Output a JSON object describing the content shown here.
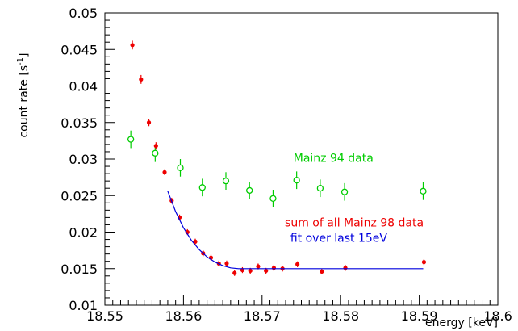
{
  "chart_data": {
    "type": "scatter",
    "xlabel": "energy  [keV]",
    "ylabel": "count rate [s-1]",
    "ylabel_main": "count rate [s",
    "ylabel_sup": "-1",
    "ylabel_tail": "]",
    "xlim": [
      18.55,
      18.6
    ],
    "ylim": [
      0.01,
      0.05
    ],
    "x_ticks": [
      18.55,
      18.56,
      18.57,
      18.58,
      18.59,
      18.6
    ],
    "x_tick_labels": [
      "18.55",
      "18.56",
      "18.57",
      "18.58",
      "18.59",
      "18.6"
    ],
    "y_ticks": [
      0.01,
      0.015,
      0.02,
      0.025,
      0.03,
      0.035,
      0.04,
      0.045,
      0.05
    ],
    "y_tick_labels": [
      "0.01",
      "0.015",
      "0.02",
      "0.025",
      "0.03",
      "0.035",
      "0.04",
      "0.045",
      "0.05"
    ],
    "grid": false,
    "series": [
      {
        "name": "Mainz 94 data",
        "color": "#00cc00",
        "marker": "open-circle",
        "points": [
          {
            "x": 18.5533,
            "y": 0.0327,
            "err": 0.0012
          },
          {
            "x": 18.5564,
            "y": 0.0308,
            "err": 0.0012
          },
          {
            "x": 18.5596,
            "y": 0.0288,
            "err": 0.0012
          },
          {
            "x": 18.5624,
            "y": 0.0261,
            "err": 0.0012
          },
          {
            "x": 18.5654,
            "y": 0.027,
            "err": 0.0012
          },
          {
            "x": 18.5684,
            "y": 0.0257,
            "err": 0.0012
          },
          {
            "x": 18.5714,
            "y": 0.0246,
            "err": 0.0012
          },
          {
            "x": 18.5744,
            "y": 0.0271,
            "err": 0.0012
          },
          {
            "x": 18.5774,
            "y": 0.026,
            "err": 0.0012
          },
          {
            "x": 18.5805,
            "y": 0.0255,
            "err": 0.0012
          },
          {
            "x": 18.5905,
            "y": 0.0256,
            "err": 0.0012
          }
        ]
      },
      {
        "name": "sum of all Mainz 98 data",
        "color": "#ee0000",
        "marker": "filled-circle",
        "points": [
          {
            "x": 18.5535,
            "y": 0.0456,
            "err": 0.0006
          },
          {
            "x": 18.5546,
            "y": 0.0409,
            "err": 0.0006
          },
          {
            "x": 18.5556,
            "y": 0.035,
            "err": 0.0005
          },
          {
            "x": 18.5565,
            "y": 0.0318,
            "err": 0.0005
          },
          {
            "x": 18.5576,
            "y": 0.0282,
            "err": 0.0004
          },
          {
            "x": 18.5585,
            "y": 0.0243,
            "err": 0.0004
          },
          {
            "x": 18.5595,
            "y": 0.022,
            "err": 0.0004
          },
          {
            "x": 18.5605,
            "y": 0.02,
            "err": 0.0004
          },
          {
            "x": 18.5615,
            "y": 0.0187,
            "err": 0.0004
          },
          {
            "x": 18.5625,
            "y": 0.0171,
            "err": 0.0004
          },
          {
            "x": 18.5635,
            "y": 0.0165,
            "err": 0.0004
          },
          {
            "x": 18.5645,
            "y": 0.0157,
            "err": 0.0004
          },
          {
            "x": 18.5655,
            "y": 0.0157,
            "err": 0.0004
          },
          {
            "x": 18.5665,
            "y": 0.0144,
            "err": 0.0004
          },
          {
            "x": 18.5675,
            "y": 0.0148,
            "err": 0.0004
          },
          {
            "x": 18.5685,
            "y": 0.0147,
            "err": 0.0004
          },
          {
            "x": 18.5695,
            "y": 0.0153,
            "err": 0.0004
          },
          {
            "x": 18.5705,
            "y": 0.0147,
            "err": 0.0004
          },
          {
            "x": 18.5715,
            "y": 0.0151,
            "err": 0.0004
          },
          {
            "x": 18.5726,
            "y": 0.015,
            "err": 0.0004
          },
          {
            "x": 18.5745,
            "y": 0.0156,
            "err": 0.0004
          },
          {
            "x": 18.5776,
            "y": 0.0146,
            "err": 0.0004
          },
          {
            "x": 18.5806,
            "y": 0.0151,
            "err": 0.0004
          },
          {
            "x": 18.5906,
            "y": 0.0159,
            "err": 0.0004
          }
        ]
      },
      {
        "name": "fit over last 15eV",
        "color": "#0000dd",
        "marker": "line",
        "points": [
          {
            "x": 18.558,
            "y": 0.0256
          },
          {
            "x": 18.559,
            "y": 0.0228
          },
          {
            "x": 18.56,
            "y": 0.0206
          },
          {
            "x": 18.561,
            "y": 0.0189
          },
          {
            "x": 18.562,
            "y": 0.0176
          },
          {
            "x": 18.563,
            "y": 0.0166
          },
          {
            "x": 18.564,
            "y": 0.0159
          },
          {
            "x": 18.565,
            "y": 0.0154
          },
          {
            "x": 18.566,
            "y": 0.0151
          },
          {
            "x": 18.567,
            "y": 0.015
          },
          {
            "x": 18.575,
            "y": 0.015
          },
          {
            "x": 18.585,
            "y": 0.015
          },
          {
            "x": 18.5905,
            "y": 0.015
          }
        ]
      }
    ],
    "annotations": [
      {
        "text": "Mainz 94 data",
        "color": "#00cc00",
        "x": 18.574,
        "y": 0.0296
      },
      {
        "text": "sum of all Mainz 98 data",
        "color": "#ee0000",
        "x": 18.5729,
        "y": 0.0208
      },
      {
        "text": "fit over last 15eV",
        "color": "#0000dd",
        "x": 18.5736,
        "y": 0.0187
      }
    ]
  }
}
